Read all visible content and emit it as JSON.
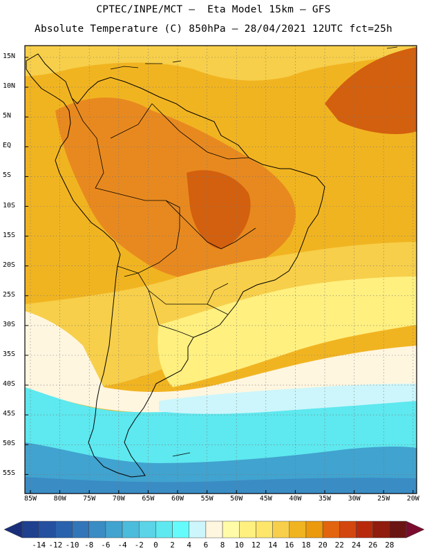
{
  "title_line1": "CPTEC/INPE/MCT –  Eta Model 15km – GFS",
  "title_line2": "Absolute Temperature (C) 850hPa – 28/04/2021 12UTC fct=25h",
  "lat_ticks": [
    "15N",
    "10N",
    "5N",
    "EQ",
    "5S",
    "10S",
    "15S",
    "20S",
    "25S",
    "30S",
    "35S",
    "40S",
    "45S",
    "50S",
    "55S"
  ],
  "lon_ticks": [
    "85W",
    "80W",
    "75W",
    "70W",
    "65W",
    "60W",
    "55W",
    "50W",
    "45W",
    "40W",
    "35W",
    "30W",
    "25W",
    "20W"
  ],
  "colorbar": {
    "labels": [
      "-14",
      "-12",
      "-10",
      "-8",
      "-6",
      "-4",
      "-2",
      "0",
      "2",
      "4",
      "6",
      "8",
      "10",
      "12",
      "14",
      "16",
      "18",
      "20",
      "22",
      "24",
      "26",
      "28"
    ],
    "colors": [
      "#1f3f8f",
      "#24509f",
      "#2a62ad",
      "#3275b8",
      "#3a8cc4",
      "#41a3cf",
      "#4cbcdc",
      "#5ad4e6",
      "#5ee8ef",
      "#66fbfb",
      "#ccf6fb",
      "#fff6e0",
      "#fffba6",
      "#fff080",
      "#fde66a",
      "#f7cf4a",
      "#f1b421",
      "#eb9a0d",
      "#e2640e",
      "#d3460e",
      "#b8290c",
      "#8f1c0c",
      "#6b1414"
    ],
    "left_arrow_color": "#1a2f7a",
    "right_arrow_color": "#7a0c2e"
  },
  "colors": {
    "ocean_north": "#f1b421",
    "land_warm": "#e8891f",
    "hot_spot": "#d3600e",
    "mid_warm": "#f7cf4a",
    "cool_yellow": "#fff080",
    "cream": "#fff6e0",
    "cyan": "#5ee8ef",
    "cyan_light": "#ccf6fb",
    "blue": "#41a3cf"
  }
}
